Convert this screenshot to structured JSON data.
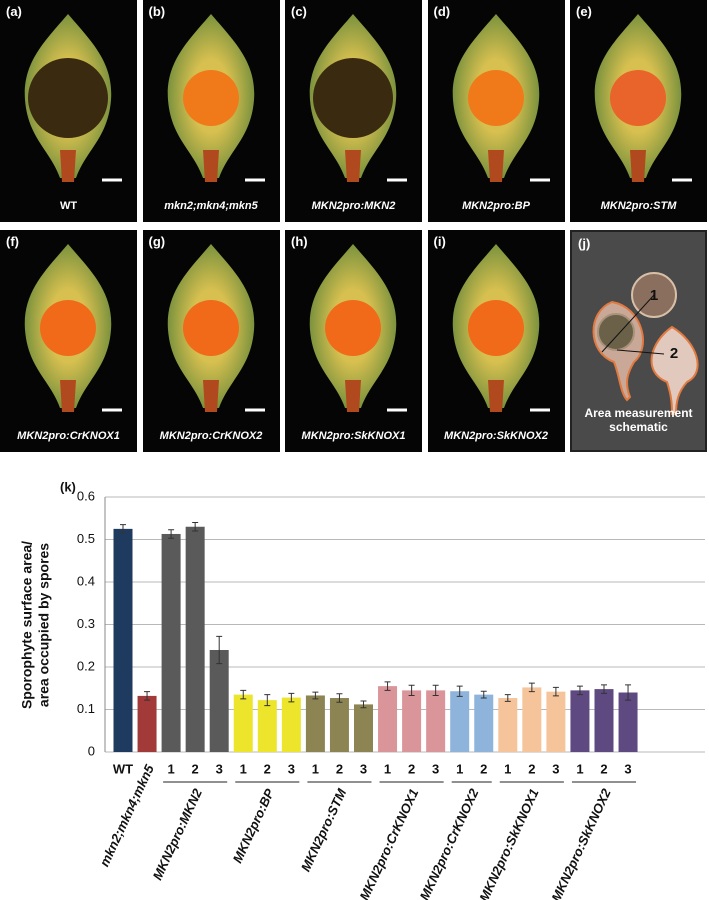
{
  "panels": [
    {
      "letter": "(a)",
      "caption": "WT",
      "center": "#3a2a10"
    },
    {
      "letter": "(b)",
      "caption": "mkn2;mkn4;mkn5",
      "center": "#f07a1a"
    },
    {
      "letter": "(c)",
      "caption": "MKN2pro:MKN2",
      "center": "#3a2a10"
    },
    {
      "letter": "(d)",
      "caption": "MKN2pro:BP",
      "center": "#f07a1a"
    },
    {
      "letter": "(e)",
      "caption": "MKN2pro:STM",
      "center": "#e8642a"
    },
    {
      "letter": "(f)",
      "caption": "MKN2pro:CrKNOX1",
      "center": "#f06a1a"
    },
    {
      "letter": "(g)",
      "caption": "MKN2pro:CrKNOX2",
      "center": "#f06a1a"
    },
    {
      "letter": "(h)",
      "caption": "MKN2pro:SkKNOX1",
      "center": "#f06a1a"
    },
    {
      "letter": "(i)",
      "caption": "MKN2pro:SkKNOX2",
      "center": "#f06a1a"
    }
  ],
  "schematic": {
    "letter": "(j)",
    "labels": [
      "1",
      "2"
    ],
    "caption": "Area measurement schematic"
  },
  "chart_data": {
    "type": "bar",
    "panel_letter": "(k)",
    "y_label": [
      "Sporophyte surface area/",
      "area occupied by spores"
    ],
    "ylim": [
      0,
      0.6
    ],
    "yticks": [
      0,
      0.1,
      0.2,
      0.3,
      0.4,
      0.5,
      0.6
    ],
    "grid": true,
    "groups": [
      {
        "name": "WT",
        "rotate_name": false,
        "color": "#1f3a5f",
        "bar_labels": [
          null
        ],
        "values": [
          0.525
        ],
        "errors": [
          0.01
        ]
      },
      {
        "name": "mkn2;mkn4;mkn5",
        "rotate_name": true,
        "color": "#a33a3a",
        "bar_labels": [
          null
        ],
        "values": [
          0.132
        ],
        "errors": [
          0.01
        ]
      },
      {
        "name": "MKN2pro:MKN2",
        "rotate_name": true,
        "color": "#5a5a5a",
        "bar_labels": [
          "1",
          "2",
          "3"
        ],
        "values": [
          0.513,
          0.53,
          0.24
        ],
        "errors": [
          0.01,
          0.01,
          0.032
        ]
      },
      {
        "name": "MKN2pro:BP",
        "rotate_name": true,
        "color": "#ece52c",
        "bar_labels": [
          "1",
          "2",
          "3"
        ],
        "values": [
          0.135,
          0.122,
          0.128
        ],
        "errors": [
          0.01,
          0.013,
          0.01
        ]
      },
      {
        "name": "MKN2pro:STM",
        "rotate_name": true,
        "color": "#8c8452",
        "bar_labels": [
          "1",
          "2",
          "3"
        ],
        "values": [
          0.133,
          0.127,
          0.112
        ],
        "errors": [
          0.008,
          0.01,
          0.008
        ]
      },
      {
        "name": "MKN2pro:CrKNOX1",
        "rotate_name": true,
        "color": "#d9959a",
        "bar_labels": [
          "1",
          "2",
          "3"
        ],
        "values": [
          0.155,
          0.145,
          0.145
        ],
        "errors": [
          0.01,
          0.012,
          0.012
        ]
      },
      {
        "name": "MKN2pro:CrKNOX2",
        "rotate_name": true,
        "color": "#8fb4dc",
        "bar_labels": [
          "1",
          "2"
        ],
        "values": [
          0.143,
          0.135
        ],
        "errors": [
          0.012,
          0.008
        ]
      },
      {
        "name": "MKN2pro:SkKNOX1",
        "rotate_name": true,
        "color": "#f5c49a",
        "bar_labels": [
          "1",
          "2",
          "3"
        ],
        "values": [
          0.127,
          0.152,
          0.142
        ],
        "errors": [
          0.008,
          0.01,
          0.01
        ]
      },
      {
        "name": "MKN2pro:SkKNOX2",
        "rotate_name": true,
        "color": "#5e4a80",
        "bar_labels": [
          "1",
          "2",
          "3"
        ],
        "values": [
          0.145,
          0.148,
          0.14
        ],
        "errors": [
          0.01,
          0.01,
          0.018
        ]
      }
    ]
  }
}
